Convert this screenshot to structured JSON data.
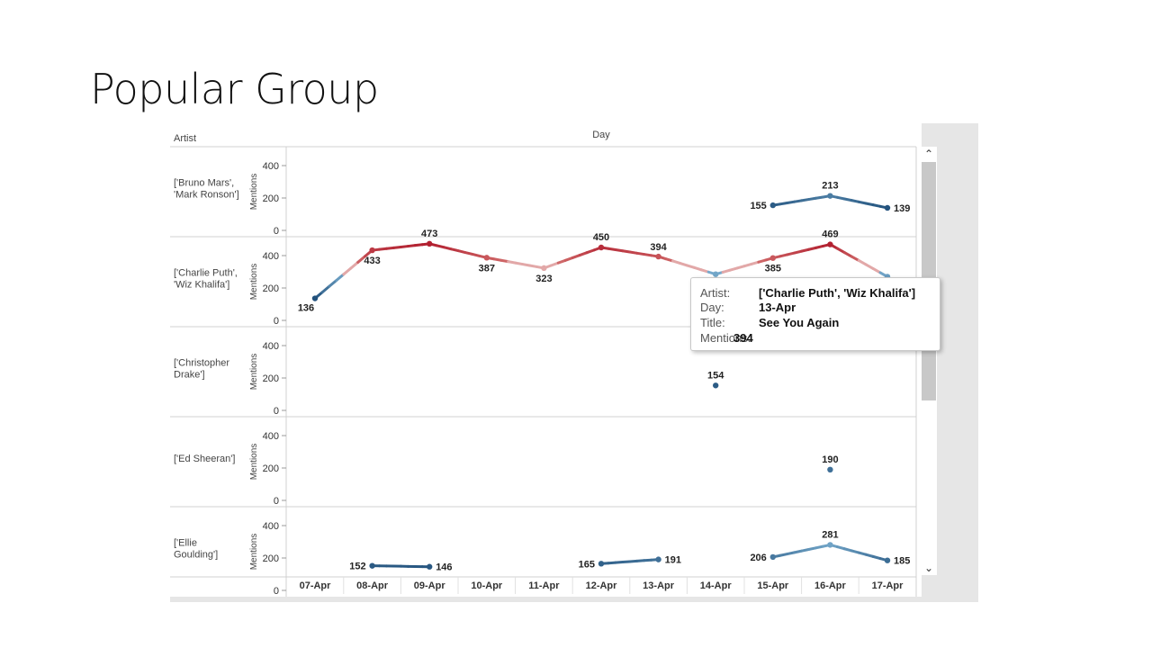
{
  "slide": {
    "title": "Popular Group"
  },
  "chart_data": {
    "type": "line",
    "title": "",
    "row_header": "Artist",
    "column_header": "Day",
    "ylabel": "Mentions",
    "ylim": [
      0,
      450
    ],
    "yticks": [
      0,
      200,
      400
    ],
    "x": [
      "07-Apr",
      "08-Apr",
      "09-Apr",
      "10-Apr",
      "11-Apr",
      "12-Apr",
      "13-Apr",
      "14-Apr",
      "15-Apr",
      "16-Apr",
      "17-Apr"
    ],
    "color_scale": {
      "low": "#1f4e79",
      "high": "#b22030",
      "mid": "#e2a8a8"
    },
    "panels": [
      {
        "artist_lines": [
          "['Bruno Mars',",
          "'Mark Ronson']"
        ],
        "values": [
          null,
          null,
          null,
          null,
          null,
          null,
          null,
          null,
          155,
          213,
          139
        ],
        "labels": [
          null,
          null,
          null,
          null,
          null,
          null,
          null,
          null,
          "155",
          "213",
          "139"
        ]
      },
      {
        "artist_lines": [
          "['Charlie Puth',",
          "'Wiz Khalifa']"
        ],
        "values": [
          136,
          433,
          473,
          387,
          323,
          450,
          394,
          285,
          385,
          469,
          270
        ],
        "labels": [
          "136",
          "433",
          "473",
          "387",
          "323",
          "450",
          "394",
          null,
          "385",
          "469",
          null
        ]
      },
      {
        "artist_lines": [
          "['Christopher",
          "Drake']"
        ],
        "values": [
          null,
          null,
          null,
          null,
          null,
          null,
          null,
          154,
          null,
          null,
          null
        ],
        "labels": [
          null,
          null,
          null,
          null,
          null,
          null,
          null,
          "154",
          null,
          null,
          null
        ]
      },
      {
        "artist_lines": [
          "['Ed Sheeran']"
        ],
        "values": [
          null,
          null,
          null,
          null,
          null,
          null,
          null,
          null,
          null,
          190,
          null
        ],
        "labels": [
          null,
          null,
          null,
          null,
          null,
          null,
          null,
          null,
          null,
          "190",
          null
        ]
      },
      {
        "artist_lines": [
          "['Ellie",
          "Goulding']"
        ],
        "values": [
          null,
          152,
          146,
          null,
          null,
          165,
          191,
          null,
          206,
          281,
          185
        ],
        "labels": [
          null,
          "152",
          "146",
          null,
          null,
          "165",
          "191",
          null,
          "206",
          "281",
          "185"
        ]
      }
    ]
  },
  "tooltip": {
    "artist_key": "Artist:",
    "artist_value": "['Charlie Puth', 'Wiz Khalifa']",
    "day_key": "Day:",
    "day_value": "13-Apr",
    "title_key": "Title:",
    "title_value": "See You Again",
    "mentions_key": "Mentions:",
    "mentions_value": "394"
  },
  "scrollbar": {
    "up_icon": "chevron-up-icon",
    "down_icon": "chevron-down-icon"
  }
}
